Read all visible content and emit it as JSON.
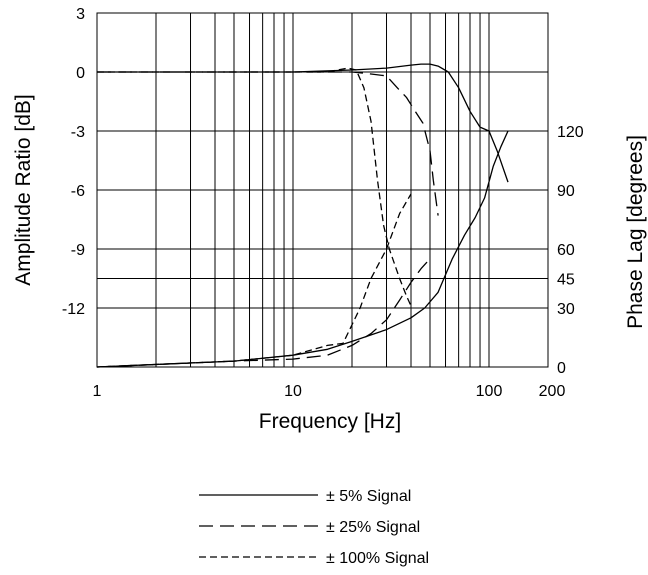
{
  "chart_data": {
    "type": "line",
    "xlabel": "Frequency [Hz]",
    "ylabel_left": "Amplitude Ratio [dB]",
    "ylabel_right": "Phase Lag [degrees]",
    "x_scale": "log",
    "xlim": [
      1,
      200
    ],
    "ylim_left": [
      -15,
      3
    ],
    "ylim_right": [
      0,
      180
    ],
    "grid": true,
    "legend_position": "bottom",
    "x_ticks": [
      {
        "value": 1,
        "label": "1"
      },
      {
        "value": 10,
        "label": "10"
      },
      {
        "value": 100,
        "label": "100"
      },
      {
        "value": 200,
        "label": "200"
      }
    ],
    "y_ticks_left": [
      {
        "value": 3,
        "label": "3"
      },
      {
        "value": 0,
        "label": "0"
      },
      {
        "value": -3,
        "label": "-3"
      },
      {
        "value": -6,
        "label": "-6"
      },
      {
        "value": -9,
        "label": "-9"
      },
      {
        "value": -12,
        "label": "-12"
      }
    ],
    "y_ticks_right": [
      {
        "value": 120,
        "label": "120"
      },
      {
        "value": 90,
        "label": "90"
      },
      {
        "value": 60,
        "label": "60"
      },
      {
        "value": 45,
        "label": "45"
      },
      {
        "value": 30,
        "label": "30"
      },
      {
        "value": 0,
        "label": "0"
      }
    ],
    "series": [
      {
        "name": "± 5% Signal",
        "dash": "solid",
        "amplitude": [
          [
            1,
            0
          ],
          [
            10,
            0
          ],
          [
            20,
            0.1
          ],
          [
            30,
            0.2
          ],
          [
            40,
            0.35
          ],
          [
            45,
            0.4
          ],
          [
            50,
            0.4
          ],
          [
            55,
            0.3
          ],
          [
            62,
            0
          ],
          [
            70,
            -0.8
          ],
          [
            80,
            -2
          ],
          [
            90,
            -2.8
          ],
          [
            100,
            -3
          ],
          [
            110,
            -4
          ],
          [
            125,
            -5.6
          ]
        ],
        "phase": [
          [
            1,
            0
          ],
          [
            5,
            3
          ],
          [
            10,
            6
          ],
          [
            15,
            9
          ],
          [
            20,
            13
          ],
          [
            30,
            19
          ],
          [
            40,
            25
          ],
          [
            47,
            30
          ],
          [
            55,
            38
          ],
          [
            65,
            55
          ],
          [
            75,
            67
          ],
          [
            85,
            76
          ],
          [
            95,
            86
          ],
          [
            105,
            102
          ],
          [
            115,
            112
          ],
          [
            125,
            120
          ]
        ]
      },
      {
        "name": "± 25% Signal",
        "dash": "long-dash",
        "amplitude": [
          [
            1,
            0
          ],
          [
            15,
            0
          ],
          [
            20,
            0
          ],
          [
            25,
            -0.1
          ],
          [
            30,
            -0.2
          ],
          [
            34,
            -0.8
          ],
          [
            38,
            -1.3
          ],
          [
            42,
            -2
          ],
          [
            46,
            -2.6
          ],
          [
            50,
            -4
          ],
          [
            52,
            -5.5
          ],
          [
            55,
            -7.3
          ]
        ],
        "phase": [
          [
            1,
            0
          ],
          [
            5,
            3
          ],
          [
            10,
            4
          ],
          [
            15,
            6
          ],
          [
            20,
            11
          ],
          [
            25,
            17
          ],
          [
            30,
            24
          ],
          [
            35,
            34
          ],
          [
            40,
            43
          ],
          [
            45,
            50
          ],
          [
            50,
            55
          ]
        ]
      },
      {
        "name": "± 100% Signal",
        "dash": "short-dash",
        "amplitude": [
          [
            1,
            0
          ],
          [
            15,
            0
          ],
          [
            19,
            0.2
          ],
          [
            21,
            0.1
          ],
          [
            23,
            -0.8
          ],
          [
            25,
            -2.5
          ],
          [
            27,
            -5.5
          ],
          [
            29,
            -7.8
          ],
          [
            31,
            -9
          ],
          [
            35,
            -10.5
          ],
          [
            38,
            -11.4
          ],
          [
            40,
            -11.9
          ]
        ],
        "phase": [
          [
            1,
            0
          ],
          [
            5,
            3
          ],
          [
            10,
            6
          ],
          [
            15,
            11
          ],
          [
            18,
            12
          ],
          [
            22,
            30
          ],
          [
            25,
            45
          ],
          [
            30,
            60
          ],
          [
            35,
            78
          ],
          [
            40,
            88
          ]
        ]
      }
    ]
  }
}
